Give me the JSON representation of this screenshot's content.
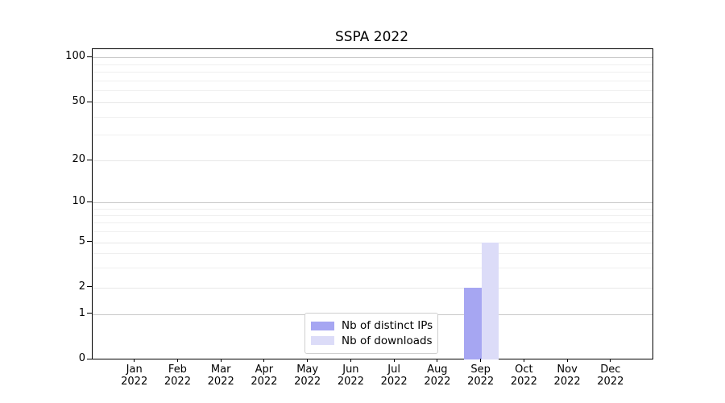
{
  "chart_data": {
    "type": "bar",
    "title": "SSPA 2022",
    "categories": [
      "Jan",
      "Feb",
      "Mar",
      "Apr",
      "May",
      "Jun",
      "Jul",
      "Aug",
      "Sep",
      "Oct",
      "Nov",
      "Dec"
    ],
    "category_year": "2022",
    "series": [
      {
        "name": "Nb of distinct IPs",
        "color": "#a6a6f2",
        "values": [
          0,
          0,
          0,
          0,
          0,
          0,
          0,
          0,
          2,
          0,
          0,
          0
        ]
      },
      {
        "name": "Nb of downloads",
        "color": "#dcdcf8",
        "values": [
          0,
          0,
          0,
          0,
          0,
          0,
          0,
          0,
          5,
          0,
          0,
          0
        ]
      }
    ],
    "y_ticks": [
      0,
      1,
      2,
      5,
      10,
      20,
      50,
      100
    ],
    "y_major_gridlines": [
      1,
      10,
      100
    ],
    "y_minor_gridlines": [
      3,
      4,
      6,
      7,
      8,
      9,
      30,
      40,
      60,
      70,
      80,
      90
    ],
    "y_scale": "symlog",
    "ylim": [
      0,
      113
    ],
    "grid": "horizontal",
    "legend_position": "bottom-center",
    "axis_color": "#000000",
    "major_grid_color": "#c8c8c8",
    "minor_grid_color": "#efefef"
  }
}
